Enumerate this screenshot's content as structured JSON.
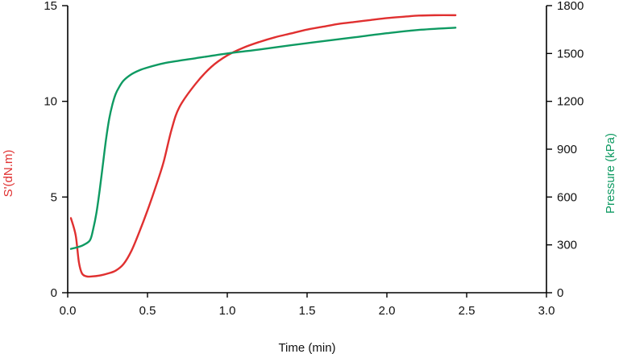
{
  "chart_data": {
    "type": "line",
    "title": "",
    "xlabel": "Time (min)",
    "ylabel_left": "S'(dN.m)",
    "ylabel_right": "Pressure (kPa)",
    "xlim": [
      0,
      3
    ],
    "ylim_left": [
      0,
      15
    ],
    "ylim_right": [
      0,
      1800
    ],
    "x_ticks": [
      "0.0",
      "0.5",
      "1.0",
      "1.5",
      "2.0",
      "2.5",
      "3.0"
    ],
    "y_left_ticks": [
      "0",
      "5",
      "10",
      "15"
    ],
    "y_right_ticks": [
      "0",
      "300",
      "600",
      "900",
      "1200",
      "1500",
      "1800"
    ],
    "grid": false,
    "colors": {
      "torque": "#e03030",
      "pressure": "#0e9a62",
      "axis": "#000000",
      "left_label": "#e03030",
      "right_label": "#0e9a62"
    },
    "series": [
      {
        "axis": "left",
        "color_key": "torque",
        "x": [
          0.02,
          0.05,
          0.07,
          0.09,
          0.12,
          0.15,
          0.2,
          0.25,
          0.3,
          0.35,
          0.4,
          0.45,
          0.5,
          0.55,
          0.6,
          0.65,
          0.7,
          0.8,
          0.9,
          1.0,
          1.1,
          1.2,
          1.3,
          1.4,
          1.5,
          1.6,
          1.7,
          1.8,
          1.9,
          2.0,
          2.1,
          2.2,
          2.3,
          2.43
        ],
        "y": [
          3.9,
          3.0,
          1.6,
          1.0,
          0.85,
          0.85,
          0.9,
          1.0,
          1.15,
          1.5,
          2.2,
          3.2,
          4.3,
          5.5,
          6.8,
          8.5,
          9.7,
          10.9,
          11.8,
          12.4,
          12.8,
          13.1,
          13.35,
          13.55,
          13.75,
          13.9,
          14.05,
          14.15,
          14.25,
          14.35,
          14.42,
          14.48,
          14.5,
          14.5
        ]
      },
      {
        "axis": "right",
        "color_key": "pressure",
        "x": [
          0.02,
          0.06,
          0.1,
          0.14,
          0.16,
          0.18,
          0.2,
          0.22,
          0.24,
          0.26,
          0.28,
          0.3,
          0.32,
          0.35,
          0.4,
          0.45,
          0.5,
          0.6,
          0.7,
          0.8,
          1.0,
          1.2,
          1.4,
          1.6,
          1.8,
          2.0,
          2.2,
          2.43
        ],
        "y": [
          275,
          285,
          300,
          330,
          400,
          500,
          640,
          800,
          960,
          1090,
          1180,
          1245,
          1285,
          1330,
          1370,
          1395,
          1412,
          1438,
          1455,
          1470,
          1500,
          1525,
          1552,
          1577,
          1602,
          1627,
          1648,
          1662
        ]
      }
    ]
  }
}
